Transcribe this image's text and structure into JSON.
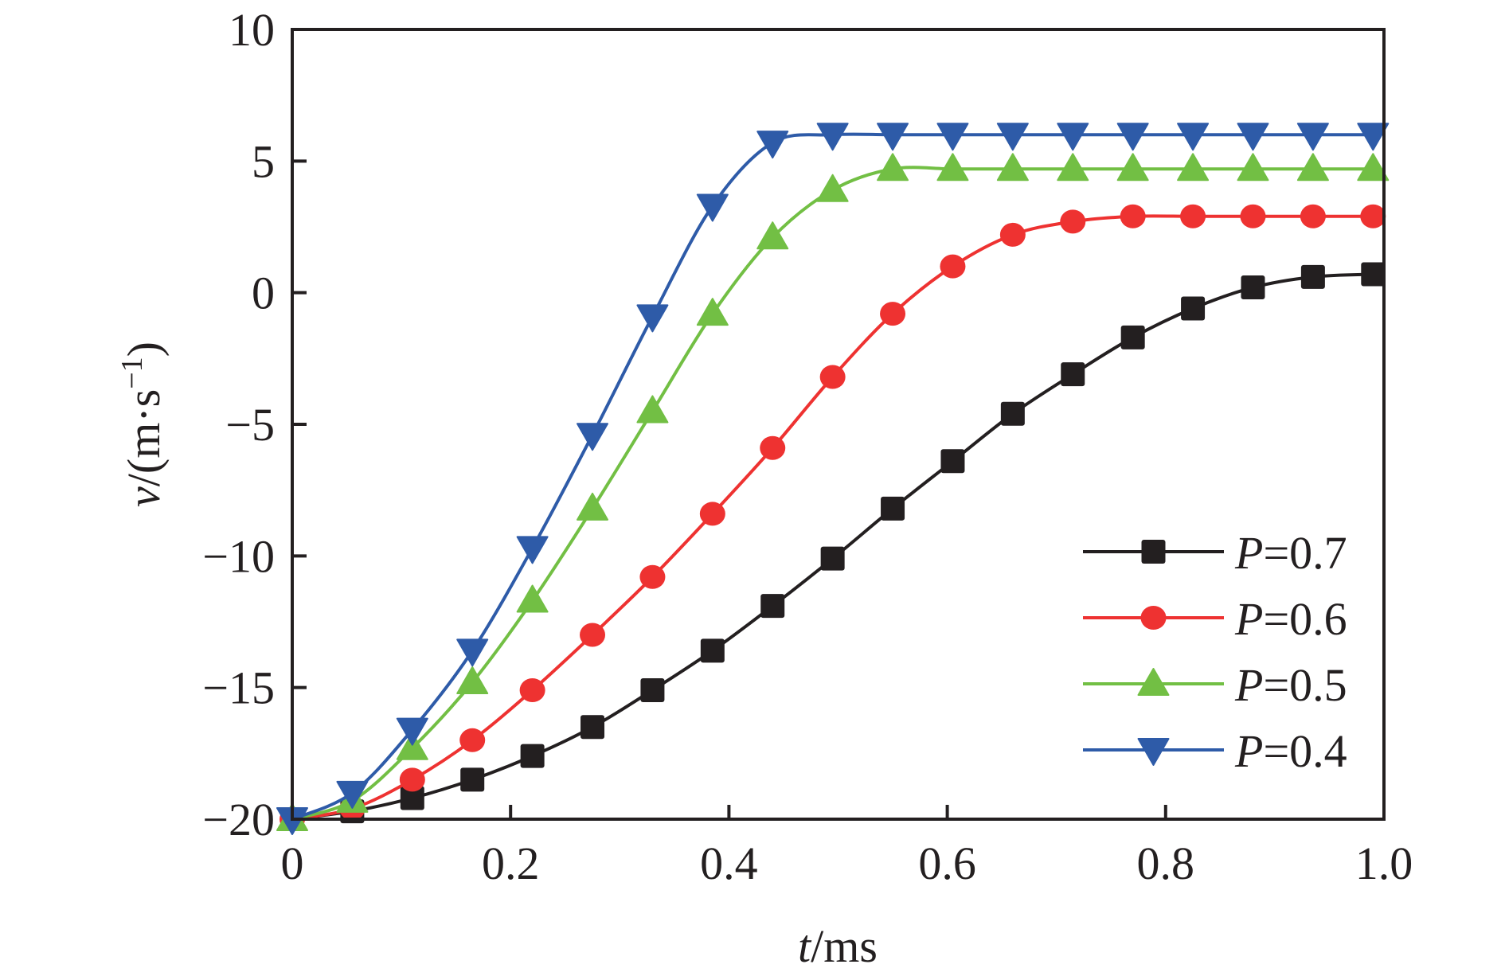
{
  "chart_data": {
    "type": "line",
    "title": "",
    "xlabel": "t/ms",
    "ylabel": "v/(m·s⁻¹)",
    "xlabel_parts": {
      "var": "t",
      "unit": "/ms"
    },
    "ylabel_parts": {
      "var": "v",
      "unit": "/(m·s",
      "sup": "−1",
      "close": ")"
    },
    "xlim": [
      0,
      1.0
    ],
    "ylim": [
      -20,
      10
    ],
    "xticks": [
      0,
      0.2,
      0.4,
      0.6,
      0.8,
      1.0
    ],
    "xtick_labels": [
      "0",
      "0.2",
      "0.4",
      "0.6",
      "0.8",
      "1.0"
    ],
    "yticks": [
      -20,
      -15,
      -10,
      -5,
      0,
      5,
      10
    ],
    "ytick_labels": [
      "−20",
      "−15",
      "−10",
      "−5",
      "0",
      "5",
      "10"
    ],
    "grid": false,
    "legend_position": "bottom-right",
    "x": [
      0,
      0.055,
      0.11,
      0.165,
      0.22,
      0.275,
      0.33,
      0.385,
      0.44,
      0.495,
      0.55,
      0.605,
      0.66,
      0.715,
      0.77,
      0.825,
      0.88,
      0.935,
      0.99
    ],
    "series": [
      {
        "name": "P=0.7",
        "label_var": "P",
        "label_val": "=0.7",
        "color": "#231f20",
        "marker": "square",
        "values": [
          -20,
          -19.7,
          -19.2,
          -18.5,
          -17.6,
          -16.5,
          -15.1,
          -13.6,
          -11.9,
          -10.1,
          -8.2,
          -6.4,
          -4.6,
          -3.1,
          -1.7,
          -0.6,
          0.2,
          0.6,
          0.7
        ]
      },
      {
        "name": "P=0.6",
        "label_var": "P",
        "label_val": "=0.6",
        "color": "#ee3231",
        "marker": "circle",
        "values": [
          -20,
          -19.6,
          -18.5,
          -17.0,
          -15.1,
          -13.0,
          -10.8,
          -8.4,
          -5.9,
          -3.2,
          -0.8,
          1.0,
          2.2,
          2.7,
          2.9,
          2.9,
          2.9,
          2.9,
          2.9
        ]
      },
      {
        "name": "P=0.5",
        "label_var": "P",
        "label_val": "=0.5",
        "color": "#72bf44",
        "marker": "triangle-up",
        "values": [
          -20,
          -19.3,
          -17.3,
          -14.8,
          -11.7,
          -8.2,
          -4.5,
          -0.8,
          2.1,
          3.9,
          4.7,
          4.7,
          4.7,
          4.7,
          4.7,
          4.7,
          4.7,
          4.7,
          4.7
        ]
      },
      {
        "name": "P=0.4",
        "label_var": "P",
        "label_val": "=0.4",
        "color": "#2e5ba8",
        "marker": "triangle-down",
        "values": [
          -20,
          -19.0,
          -16.6,
          -13.6,
          -9.7,
          -5.4,
          -0.9,
          3.3,
          5.7,
          6.0,
          6.0,
          6.0,
          6.0,
          6.0,
          6.0,
          6.0,
          6.0,
          6.0,
          6.0
        ]
      }
    ]
  }
}
